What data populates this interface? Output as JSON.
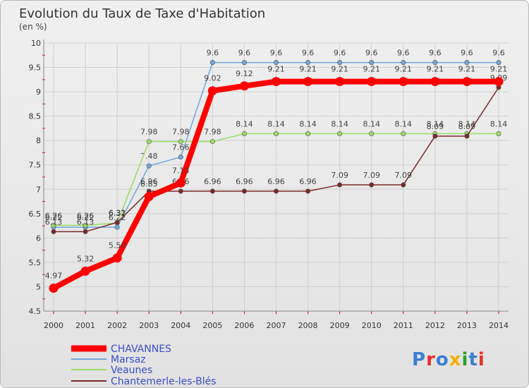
{
  "chart_data": {
    "type": "line",
    "title": "Evolution du Taux de Taxe d'Habitation",
    "subtitle": "(en %)",
    "xlabel": "",
    "ylabel": "(en %)",
    "ylim": [
      4.5,
      10
    ],
    "yticks": [
      "4.5",
      "5",
      "5.5",
      "6",
      "6.5",
      "7",
      "7.5",
      "8",
      "8.5",
      "9",
      "9.5",
      "10"
    ],
    "x": [
      "2000",
      "2001",
      "2002",
      "2003",
      "2004",
      "2005",
      "2006",
      "2007",
      "2008",
      "2009",
      "2010",
      "2011",
      "2012",
      "2013",
      "2014"
    ],
    "grid": true,
    "legend_position": "bottom-left",
    "series": [
      {
        "name": "CHAVANNES",
        "color": "#ff0000",
        "values": [
          4.97,
          5.32,
          5.59,
          6.85,
          7.13,
          9.02,
          9.12,
          9.21,
          9.21,
          9.21,
          9.21,
          9.21,
          9.21,
          9.21,
          9.21
        ],
        "labels": [
          "4.97",
          "5.32",
          "5.59",
          "6.85",
          "7.13",
          "9.02",
          "9.12",
          "9.21",
          "9.21",
          "9.21",
          "9.21",
          "9.21",
          "9.21",
          "9.21",
          "9.21"
        ]
      },
      {
        "name": "Marsaz",
        "color": "#6fa8dc",
        "values": [
          6.22,
          6.22,
          6.22,
          7.48,
          7.66,
          9.6,
          9.6,
          9.6,
          9.6,
          9.6,
          9.6,
          9.6,
          9.6,
          9.6,
          9.6
        ],
        "labels": [
          "6.22",
          "6.22",
          "6.22",
          "7.48",
          "7.66",
          "9.6",
          "9.6",
          "9.6",
          "9.6",
          "9.6",
          "9.6",
          "9.6",
          "9.6",
          "9.6",
          "9.6"
        ]
      },
      {
        "name": "Veaunes",
        "color": "#99dd66",
        "values": [
          6.26,
          6.26,
          6.31,
          7.98,
          7.98,
          7.98,
          8.14,
          8.14,
          8.14,
          8.14,
          8.14,
          8.14,
          8.14,
          8.14,
          8.14
        ],
        "labels": [
          "6.26",
          "6.26",
          "6.31",
          "7.98",
          "7.98",
          "7.98",
          "8.14",
          "8.14",
          "8.14",
          "8.14",
          "8.14",
          "8.14",
          "8.14",
          "8.14",
          "8.14"
        ]
      },
      {
        "name": "Chantemerle-les-Blés",
        "color": "#7a2a2a",
        "values": [
          6.13,
          6.13,
          6.32,
          6.96,
          6.96,
          6.96,
          6.96,
          6.96,
          6.96,
          7.09,
          7.09,
          7.09,
          8.09,
          8.09,
          9.09
        ],
        "labels": [
          "6.13",
          "6.13",
          "6.32",
          "6.96",
          "6.96",
          "6.96",
          "6.96",
          "6.96",
          "6.96",
          "7.09",
          "7.09",
          "7.09",
          "8.09",
          "8.09",
          "9.09"
        ]
      }
    ]
  },
  "branding": {
    "logo_text": "Proxiti",
    "letter_colors": [
      "#3b7fd0",
      "#e8302a",
      "#3b7fd0",
      "#f4b000",
      "#2aa02a",
      "#3b7fd0",
      "#e8302a"
    ]
  }
}
